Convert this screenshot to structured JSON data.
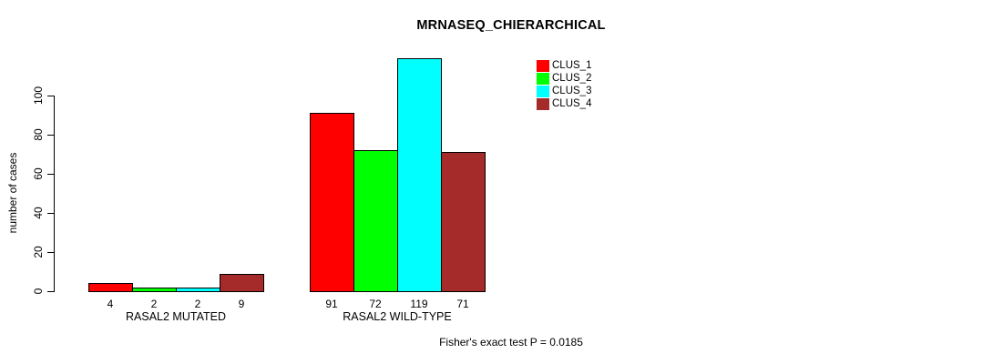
{
  "chart_data": {
    "type": "bar",
    "title": "MRNASEQ_CHIERARCHICAL",
    "ylabel": "number of cases",
    "xlabel": "",
    "footnote": "Fisher's exact test P = 0.0185",
    "y_ticks": [
      0,
      20,
      40,
      60,
      80,
      100
    ],
    "ylim": [
      0,
      125
    ],
    "grid": false,
    "legend_position": "top-right",
    "categories": [
      "RASAL2 MUTATED",
      "RASAL2 WILD-TYPE"
    ],
    "series": [
      {
        "name": "CLUS_1",
        "color": "#ff0000",
        "values": [
          4,
          91
        ]
      },
      {
        "name": "CLUS_2",
        "color": "#00ff00",
        "values": [
          2,
          72
        ]
      },
      {
        "name": "CLUS_3",
        "color": "#00ffff",
        "values": [
          2,
          119
        ]
      },
      {
        "name": "CLUS_4",
        "color": "#a52a2a",
        "values": [
          9,
          71
        ]
      }
    ],
    "bar_value_labels": [
      [
        "4",
        "2",
        "2",
        "9"
      ],
      [
        "91",
        "72",
        "119",
        "71"
      ]
    ]
  },
  "colors": {
    "background": "#ffffff",
    "axis": "#000000",
    "text": "#000000",
    "bar_border": "#000000"
  }
}
